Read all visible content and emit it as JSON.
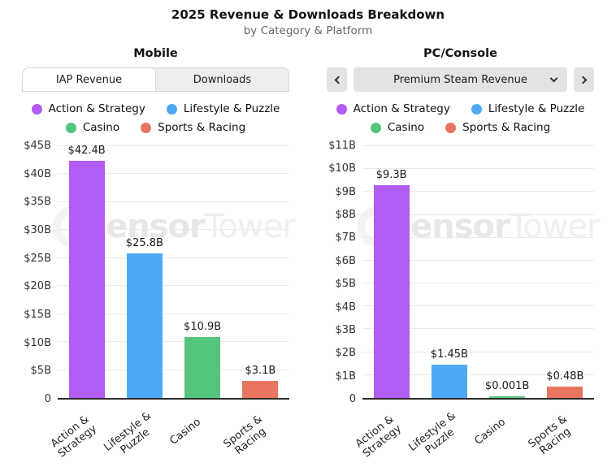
{
  "header": {
    "title": "2025 Revenue & Downloads Breakdown",
    "subtitle": "by Category & Platform"
  },
  "legend": {
    "items": [
      {
        "label": "Action & Strategy",
        "color": "#b15cf2"
      },
      {
        "label": "Lifestyle & Puzzle",
        "color": "#4da9f5"
      },
      {
        "label": "Casino",
        "color": "#55c47c"
      },
      {
        "label": "Sports & Racing",
        "color": "#e8755f"
      }
    ]
  },
  "watermark": {
    "bold": "Sensor",
    "light": "Tower"
  },
  "panels": [
    {
      "title": "Mobile",
      "tabs": [
        {
          "label": "IAP Revenue",
          "active": true
        },
        {
          "label": "Downloads",
          "active": false
        }
      ]
    },
    {
      "title": "PC/Console",
      "controls": {
        "selected": "Premium Steam Revenue"
      }
    }
  ],
  "chart_data": [
    {
      "type": "bar",
      "title": "Mobile IAP Revenue",
      "categories": [
        "Action &\nStrategy",
        "Lifestyle &\nPuzzle",
        "Casino",
        "Sports &\nRacing"
      ],
      "values": [
        42.4,
        25.8,
        10.9,
        3.1
      ],
      "value_labels": [
        "$42.4B",
        "$25.8B",
        "$10.9B",
        "$3.1B"
      ],
      "colors": [
        "#b15cf2",
        "#4da9f5",
        "#55c47c",
        "#e8755f"
      ],
      "ylim": [
        0,
        45
      ],
      "yticks": [
        {
          "value": 45,
          "label": "$45B"
        },
        {
          "value": 40,
          "label": "$40B"
        },
        {
          "value": 35,
          "label": "$35B"
        },
        {
          "value": 30,
          "label": "$30B"
        },
        {
          "value": 25,
          "label": "$25B"
        },
        {
          "value": 20,
          "label": "$20B"
        },
        {
          "value": 15,
          "label": "$15B"
        },
        {
          "value": 10,
          "label": "$10B"
        },
        {
          "value": 5,
          "label": "$5B"
        },
        {
          "value": 0,
          "label": "0"
        }
      ],
      "grid": true,
      "legend_position": "top"
    },
    {
      "type": "bar",
      "title": "PC/Console Premium Steam Revenue",
      "categories": [
        "Action &\nStrategy",
        "Lifestyle &\nPuzzle",
        "Casino",
        "Sports &\nRacing"
      ],
      "values": [
        9.3,
        1.45,
        0.001,
        0.48
      ],
      "value_labels": [
        "$9.3B",
        "$1.45B",
        "$0.001B",
        "$0.48B"
      ],
      "colors": [
        "#b15cf2",
        "#4da9f5",
        "#55c47c",
        "#e8755f"
      ],
      "ylim": [
        0,
        11
      ],
      "yticks": [
        {
          "value": 11,
          "label": "$11B"
        },
        {
          "value": 10,
          "label": "$10B"
        },
        {
          "value": 9,
          "label": "$9B"
        },
        {
          "value": 8,
          "label": "$8B"
        },
        {
          "value": 7,
          "label": "$7B"
        },
        {
          "value": 6,
          "label": "$6B"
        },
        {
          "value": 5,
          "label": "$5B"
        },
        {
          "value": 4,
          "label": "$4B"
        },
        {
          "value": 3,
          "label": "$3B"
        },
        {
          "value": 2,
          "label": "$2B"
        },
        {
          "value": 1,
          "label": "$1B"
        },
        {
          "value": 0,
          "label": "0"
        }
      ],
      "grid": true,
      "legend_position": "top"
    }
  ]
}
